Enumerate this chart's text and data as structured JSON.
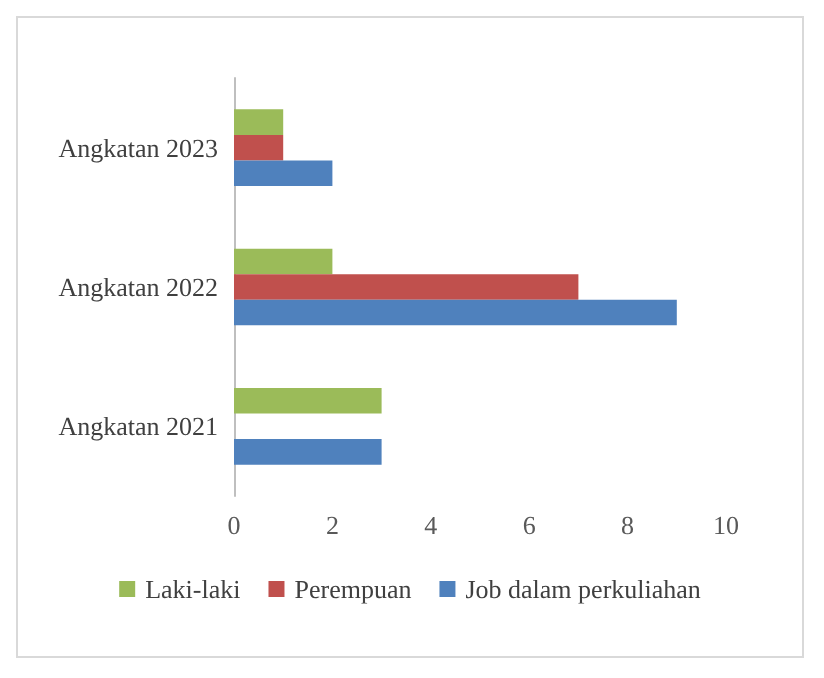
{
  "chart_data": {
    "type": "bar",
    "orientation": "horizontal",
    "categories": [
      "Angkatan 2023",
      "Angkatan 2022",
      "Angkatan 2021"
    ],
    "series": [
      {
        "name": "Laki-laki",
        "color": "#9bbb59",
        "values": [
          1,
          2,
          3
        ]
      },
      {
        "name": "Perempuan",
        "color": "#c0504d",
        "values": [
          1,
          7,
          0
        ]
      },
      {
        "name": "Job dalam perkuliahan",
        "color": "#4f81bd",
        "values": [
          2,
          9,
          3
        ]
      }
    ],
    "xlim": [
      0,
      10
    ],
    "xticks": [
      0,
      2,
      4,
      6,
      8,
      10
    ],
    "grid": false,
    "legend": "bottom"
  }
}
